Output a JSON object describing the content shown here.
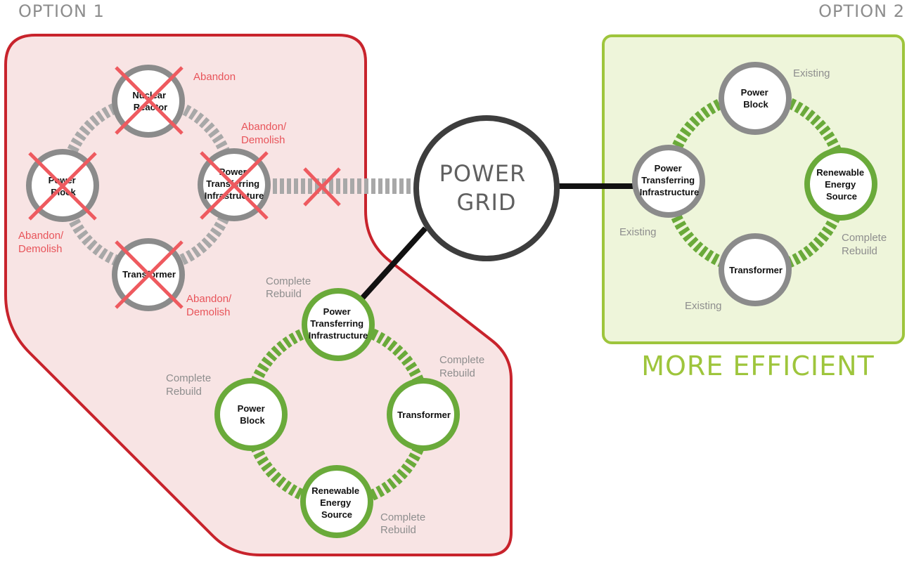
{
  "option1": {
    "label": "OPTION 1",
    "nodes": {
      "nuclear_reactor": [
        "Nuclear",
        "Reactor"
      ],
      "power_block": [
        "Power",
        "Block"
      ],
      "power_transferring": [
        "Power",
        "Transferring",
        "Infrastructure"
      ],
      "transformer": [
        "Transformer"
      ]
    },
    "annotations": {
      "nuclear_reactor": [
        "Abandon"
      ],
      "power_transferring": [
        "Abandon/",
        "Demolish"
      ],
      "power_block": [
        "Abandon/",
        "Demolish"
      ],
      "transformer": [
        "Abandon/",
        "Demolish"
      ]
    },
    "rebuild": {
      "nodes": {
        "power_transferring": [
          "Power",
          "Transferring",
          "Infrastructure"
        ],
        "power_block": [
          "Power",
          "Block"
        ],
        "transformer": [
          "Transformer"
        ],
        "renewable": [
          "Renewable",
          "Energy",
          "Source"
        ]
      },
      "annotations": {
        "power_transferring": [
          "Complete",
          "Rebuild"
        ],
        "power_block": [
          "Complete",
          "Rebuild"
        ],
        "transformer": [
          "Complete",
          "Rebuild"
        ],
        "renewable": [
          "Complete",
          "Rebuild"
        ]
      }
    }
  },
  "power_grid": [
    "POWER",
    "GRID"
  ],
  "option2": {
    "label": "OPTION 2",
    "nodes": {
      "power_block": [
        "Power",
        "Block"
      ],
      "power_transferring": [
        "Power",
        "Transferring",
        "Infrastructure"
      ],
      "renewable": [
        "Renewable",
        "Energy",
        "Source"
      ],
      "transformer": [
        "Transformer"
      ]
    },
    "annotations": {
      "power_block": "Existing",
      "power_transferring": "Existing",
      "renewable": [
        "Complete",
        "Rebuild"
      ],
      "transformer": "Existing"
    },
    "summary": "MORE EFFICIENT"
  },
  "colors": {
    "red_border": "#c8232c",
    "red_fill": "#f8e4e4",
    "red_cross": "#ee5a5f",
    "green_border": "#9ec53c",
    "green_fill": "#eef5da",
    "green_circle": "#6aaa3a",
    "gray_circle": "#8b8b8b",
    "grid_circle": "#3d3d3d"
  }
}
